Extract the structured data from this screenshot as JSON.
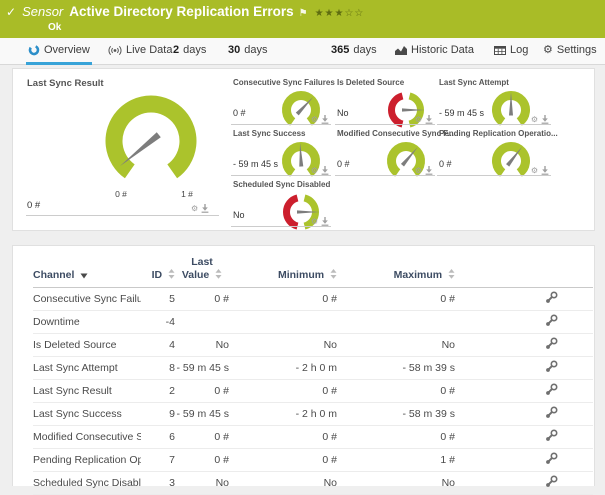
{
  "colors": {
    "banner_green": "#a9bc27",
    "gauge_olive": "#abc32c",
    "gauge_red": "#cc1f2d",
    "needle_gray": "#7d7d7d",
    "tab_accent_blue": "#38a3d8",
    "overview_icon_blue": "#2d8fc9"
  },
  "banner": {
    "check_icon": "✓",
    "sensor_label": "Sensor",
    "title": "Active Directory Replication Errors",
    "flag_icon": "⚑",
    "stars": "★★★☆☆",
    "status": "Ok"
  },
  "tabs": [
    {
      "id": "overview",
      "label": "Overview",
      "icon": "overview",
      "active": true
    },
    {
      "id": "live-data",
      "label": "Live Data",
      "icon": "live"
    },
    {
      "id": "2-days",
      "num": "2",
      "label": "days"
    },
    {
      "id": "30-days",
      "num": "30",
      "label": "days"
    },
    {
      "id": "365-days",
      "num": "365",
      "label": "days"
    },
    {
      "id": "historic-data",
      "label": "Historic Data",
      "icon": "historic"
    },
    {
      "id": "log",
      "label": "Log",
      "icon": "log"
    },
    {
      "id": "settings",
      "label": "Settings",
      "icon": "gear"
    }
  ],
  "gauges": {
    "main": {
      "id": "last-sync-result",
      "title": "Last Sync Result",
      "value": "0 #",
      "scale_min_label": "0 #",
      "scale_max_label": "1 #",
      "type": "olive",
      "needle_deg": 231
    },
    "small": [
      {
        "id": "consecutive-sync-failures",
        "title": "Consecutive Sync Failures",
        "value": "0 #",
        "type": "olive",
        "needle_deg": 43
      },
      {
        "id": "is-deleted-source",
        "title": "Is Deleted Source",
        "value": "No",
        "type": "boolean",
        "needle_deg": 90
      },
      {
        "id": "last-sync-attempt",
        "title": "Last Sync Attempt",
        "value": "- 59 m 45 s",
        "type": "olive",
        "needle_deg": 0
      },
      {
        "id": "last-sync-success",
        "title": "Last Sync Success",
        "value": "- 59 m 45 s",
        "type": "olive",
        "needle_deg": -3
      },
      {
        "id": "modified-consecutive-sync",
        "title": "Modified Consecutive Sync F...",
        "value": "0 #",
        "type": "olive",
        "needle_deg": 40
      },
      {
        "id": "pending-replication-ops",
        "title": "Pending Replication Operatio...",
        "value": "0 #",
        "type": "olive",
        "needle_deg": 38
      },
      {
        "id": "scheduled-sync-disabled",
        "title": "Scheduled Sync Disabled",
        "value": "No",
        "type": "boolean",
        "needle_deg": 90
      }
    ]
  },
  "table": {
    "headers": {
      "channel": "Channel",
      "id": "ID",
      "last_value_line1": "Last",
      "last_value_line2": "Value",
      "minimum": "Minimum",
      "maximum": "Maximum"
    },
    "rows": [
      {
        "channel": "Consecutive Sync Failur...",
        "id": "5",
        "last": "0 #",
        "min": "0 #",
        "max": "0 #"
      },
      {
        "channel": "Downtime",
        "id": "-4",
        "last": "",
        "min": "",
        "max": ""
      },
      {
        "channel": "Is Deleted Source",
        "id": "4",
        "last": "No",
        "min": "No",
        "max": "No"
      },
      {
        "channel": "Last Sync Attempt",
        "id": "8",
        "last": "- 59 m 45 s",
        "min": "- 2 h 0 m",
        "max": "- 58 m 39 s"
      },
      {
        "channel": "Last Sync Result",
        "id": "2",
        "last": "0 #",
        "min": "0 #",
        "max": "0 #"
      },
      {
        "channel": "Last Sync Success",
        "id": "9",
        "last": "- 59 m 45 s",
        "min": "- 2 h 0 m",
        "max": "- 58 m 39 s"
      },
      {
        "channel": "Modified Consecutive S...",
        "id": "6",
        "last": "0 #",
        "min": "0 #",
        "max": "0 #"
      },
      {
        "channel": "Pending Replication Op...",
        "id": "7",
        "last": "0 #",
        "min": "0 #",
        "max": "1 #"
      },
      {
        "channel": "Scheduled Sync Disabled",
        "id": "3",
        "last": "No",
        "min": "No",
        "max": "No"
      }
    ]
  }
}
